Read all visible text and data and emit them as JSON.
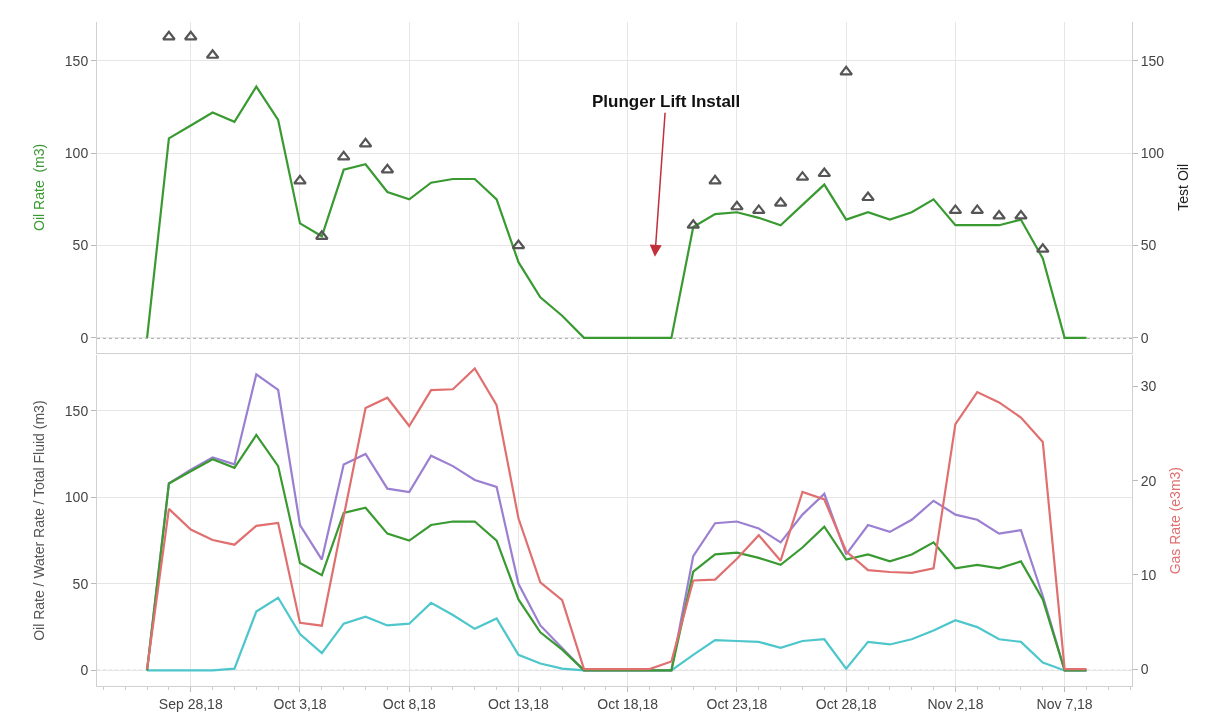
{
  "chart_data": [
    {
      "type": "line",
      "ylabel": "Oil Rate  (m3)",
      "y2label": "Test Oil",
      "x": [
        "--09-26",
        "--09-27",
        "--09-28",
        "--09-29",
        "--09-30",
        "--10-01",
        "--10-02",
        "--10-03",
        "--10-04",
        "--10-05",
        "--10-06",
        "--10-07",
        "--10-08",
        "--10-09",
        "--10-10",
        "--10-11",
        "--10-12",
        "--10-13",
        "--10-14",
        "--10-15",
        "--10-16",
        "--10-17",
        "--10-18",
        "--10-19",
        "--10-20",
        "--10-21",
        "--10-22",
        "--10-23",
        "--10-24",
        "--10-25",
        "--10-26",
        "--10-27",
        "--10-28",
        "--10-29",
        "--10-30",
        "--10-31",
        "--11-01",
        "--11-02",
        "--11-03",
        "--11-04",
        "--11-05",
        "--11-06",
        "--11-07",
        "--11-08"
      ],
      "series": [
        {
          "color": "#3a9a32",
          "values": [
            0,
            108,
            115,
            122,
            117,
            136,
            118,
            62,
            55,
            91,
            94,
            79,
            75,
            84,
            86,
            86,
            75,
            41,
            22,
            12,
            0,
            0,
            0,
            0,
            0,
            60,
            67,
            68,
            65,
            61,
            72,
            83,
            64,
            68,
            64,
            68,
            75,
            61,
            61,
            61,
            64,
            43,
            0,
            0
          ]
        },
        {
          "type": "scatter",
          "marker": "triangle",
          "axis": "y2",
          "color": "#555555",
          "x": [
            "--09-27",
            "--09-28",
            "--09-29",
            "--10-03",
            "--10-04",
            "--10-05",
            "--10-06",
            "--10-07",
            "--10-13",
            "--10-21",
            "--10-22",
            "--10-23",
            "--10-24",
            "--10-25",
            "--10-26",
            "--10-27",
            "--10-28",
            "--10-29",
            "--11-02",
            "--11-03",
            "--11-04",
            "--11-05",
            "--11-06"
          ],
          "values": [
            163,
            163,
            153,
            85,
            55,
            98,
            105,
            91,
            50,
            61,
            85,
            71,
            69,
            73,
            87,
            89,
            144,
            76,
            69,
            69,
            66,
            66,
            48
          ]
        }
      ],
      "xlim": [
        "--09-23T17:00",
        "--11-10T02:00"
      ],
      "xticks": [
        {
          "value": "--09-28",
          "label": "Sep 28,18"
        },
        {
          "value": "--10-03",
          "label": "Oct 3,18"
        },
        {
          "value": "--10-08",
          "label": "Oct 8,18"
        },
        {
          "value": "--10-13",
          "label": "Oct 13,18"
        },
        {
          "value": "--10-18",
          "label": "Oct 18,18"
        },
        {
          "value": "--10-23",
          "label": "Oct 23,18"
        },
        {
          "value": "--10-28",
          "label": "Oct 28,18"
        },
        {
          "value": "--11-02",
          "label": "Nov 2,18"
        },
        {
          "value": "--11-07",
          "label": "Nov 7,18"
        }
      ],
      "ylim": [
        -8,
        171
      ],
      "yticks": [
        0,
        50,
        100,
        150
      ],
      "y2lim": [
        -8,
        171
      ],
      "y2ticks": [
        0,
        50,
        100,
        150
      ],
      "tick_labels": "y",
      "grid": true,
      "line_style": "solid",
      "ref_lines": [
        {
          "axis": "y",
          "value": 0,
          "color": "#333333",
          "line_style": "dotted"
        }
      ],
      "annotations": [
        "Plunger Lift Install"
      ]
    },
    {
      "type": "line",
      "ylabel": "Oil Rate / Water Rate / Total Fluid (m3)",
      "y2label": "Gas Rate (e3m3)",
      "x": [
        "--09-26",
        "--09-27",
        "--09-28",
        "--09-29",
        "--09-30",
        "--10-01",
        "--10-02",
        "--10-03",
        "--10-04",
        "--10-05",
        "--10-06",
        "--10-07",
        "--10-08",
        "--10-09",
        "--10-10",
        "--10-11",
        "--10-12",
        "--10-13",
        "--10-14",
        "--10-15",
        "--10-16",
        "--10-17",
        "--10-18",
        "--10-19",
        "--10-20",
        "--10-21",
        "--10-22",
        "--10-23",
        "--10-24",
        "--10-25",
        "--10-26",
        "--10-27",
        "--10-28",
        "--10-29",
        "--10-30",
        "--10-31",
        "--11-01",
        "--11-02",
        "--11-03",
        "--11-04",
        "--11-05",
        "--11-06",
        "--11-07",
        "--11-08"
      ],
      "series": [
        {
          "color": "#e07070",
          "axis": "y2",
          "values": [
            0,
            17.0,
            14.8,
            13.7,
            13.2,
            15.2,
            15.5,
            4.9,
            4.6,
            16.2,
            27.7,
            28.8,
            25.8,
            29.6,
            29.7,
            31.9,
            28.0,
            16.0,
            9.2,
            7.3,
            0,
            0,
            0,
            0,
            0.8,
            9.4,
            9.5,
            11.7,
            14.2,
            11.5,
            18.8,
            18.0,
            12.5,
            10.5,
            10.3,
            10.2,
            10.7,
            26.0,
            29.4,
            28.3,
            26.7,
            24.1,
            0,
            0
          ]
        },
        {
          "color": "#4dc6cc",
          "values": [
            0,
            0,
            0,
            0,
            1,
            34,
            42,
            21,
            10,
            27,
            31,
            26,
            27,
            39,
            32,
            24,
            30,
            9,
            4,
            1,
            0,
            0,
            0,
            0,
            0,
            9,
            17.5,
            17,
            16.5,
            13,
            17,
            18,
            1,
            16.5,
            15,
            18,
            23,
            29,
            25,
            18,
            16.5,
            4.5,
            0,
            0
          ]
        },
        {
          "color": "#9b7fd1",
          "values": [
            0,
            108,
            116,
            123,
            119,
            171,
            162,
            84,
            64,
            119,
            125,
            105,
            103,
            124,
            118,
            110,
            106,
            50,
            26,
            13,
            0,
            0,
            0,
            0,
            0,
            66,
            85,
            86,
            82,
            74,
            90,
            102,
            67,
            84,
            80,
            87,
            98,
            90,
            87,
            79,
            81,
            43,
            0,
            0
          ]
        },
        {
          "color": "#3a9a32",
          "values": [
            0,
            108,
            115,
            122,
            117,
            136,
            118,
            62,
            55,
            91,
            94,
            79,
            75,
            84,
            86,
            86,
            75,
            41,
            22,
            12,
            0,
            0,
            0,
            0,
            0,
            57,
            67,
            68,
            65,
            61,
            71,
            83,
            64,
            67,
            63,
            67,
            74,
            59,
            61,
            59,
            63,
            41,
            0,
            0
          ]
        }
      ],
      "xlim": [
        "--09-23T17:00",
        "--11-10T02:00"
      ],
      "xticks": [
        {
          "value": "--09-28",
          "label": "Sep 28,18"
        },
        {
          "value": "--10-03",
          "label": "Oct 3,18"
        },
        {
          "value": "--10-08",
          "label": "Oct 8,18"
        },
        {
          "value": "--10-13",
          "label": "Oct 13,18"
        },
        {
          "value": "--10-18",
          "label": "Oct 18,18"
        },
        {
          "value": "--10-23",
          "label": "Oct 23,18"
        },
        {
          "value": "--10-28",
          "label": "Oct 28,18"
        },
        {
          "value": "--11-02",
          "label": "Nov 2,18"
        },
        {
          "value": "--11-07",
          "label": "Nov 7,18"
        }
      ],
      "ylim": [
        -9,
        182
      ],
      "yticks": [
        0,
        50,
        100,
        150
      ],
      "y2lim": [
        -1.8,
        33.3
      ],
      "y2ticks": [
        0,
        10,
        20,
        30
      ],
      "grid": true,
      "line_style": "solid",
      "ref_lines": [
        {
          "axis": "y",
          "value": 0,
          "color": "#333333",
          "line_style": "dotted"
        }
      ]
    }
  ]
}
